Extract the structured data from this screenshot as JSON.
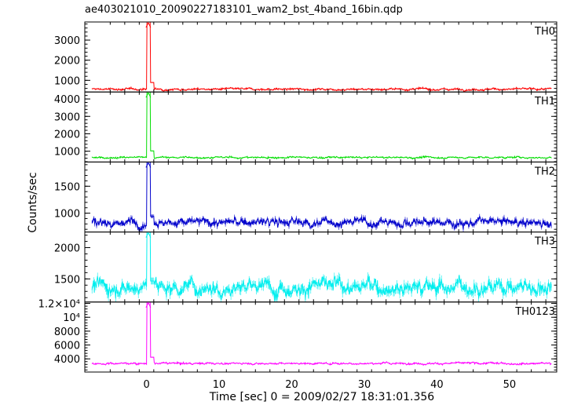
{
  "chart_data": {
    "type": "line",
    "title": "ae403021010_20090227183101_wam2_bst_4band_16bin.qdp",
    "xlabel": "Time [sec] 0 = 2009/02/27 18:31:01.356",
    "ylabel": "Counts/sec",
    "xlim": [
      -8.5,
      56.5
    ],
    "x_ticks": [
      0,
      10,
      20,
      30,
      40,
      50
    ],
    "x_tick_labels": [
      "0",
      "10",
      "20",
      "30",
      "40",
      "50"
    ],
    "grid": false,
    "panels": [
      {
        "name": "TH0",
        "color": "#ff0000",
        "ylim": [
          420,
          3900
        ],
        "y_ticks": [
          1000,
          2000,
          3000
        ],
        "y_tick_labels": [
          "1000",
          "2000",
          "3000"
        ],
        "baseline": 560,
        "noise": 45,
        "spike_x": 0.25,
        "spike_peak": 3900,
        "peak_clipped": true
      },
      {
        "name": "TH1",
        "color": "#00dd00",
        "ylim": [
          380,
          4400
        ],
        "y_ticks": [
          1000,
          2000,
          3000,
          4000
        ],
        "y_tick_labels": [
          "1000",
          "2000",
          "3000",
          "4000"
        ],
        "baseline": 640,
        "noise": 45,
        "spike_x": 0.25,
        "spike_peak": 4400,
        "peak_clipped": true
      },
      {
        "name": "TH2",
        "color": "#0000cc",
        "ylim": [
          650,
          1950
        ],
        "y_ticks": [
          1000,
          1500
        ],
        "y_tick_labels": [
          "1000",
          "1500"
        ],
        "baseline": 830,
        "noise": 70,
        "spike_x": 0.25,
        "spike_peak": 1950,
        "peak_clipped": true
      },
      {
        "name": "TH3",
        "color": "#00eeee",
        "ylim": [
          1130,
          2250
        ],
        "y_ticks": [
          1500,
          2000
        ],
        "y_tick_labels": [
          "1500",
          "2000"
        ],
        "baseline": 1380,
        "noise": 110,
        "spike_x": 0.25,
        "spike_peak": 2250,
        "peak_clipped": true
      },
      {
        "name": "TH0123",
        "color": "#ff00ff",
        "ylim": [
          2100,
          12200
        ],
        "y_ticks": [
          4000,
          6000,
          8000,
          10000,
          12000
        ],
        "y_tick_labels": [
          "4000",
          "6000",
          "8000",
          "10⁴",
          "1.2×10⁴"
        ],
        "baseline": 3350,
        "noise": 120,
        "spike_x": 0.25,
        "spike_peak": 12200,
        "peak_clipped": true
      }
    ]
  }
}
